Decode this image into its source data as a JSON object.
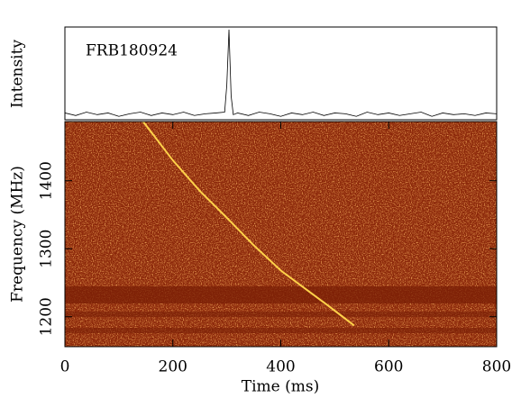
{
  "chart_data": [
    {
      "type": "line",
      "annotation": "FRB180924",
      "ylabel": "Intensity",
      "color": "#000000",
      "x": [
        0,
        20,
        40,
        60,
        80,
        100,
        120,
        140,
        160,
        180,
        200,
        220,
        240,
        260,
        280,
        296,
        300,
        304,
        308,
        312,
        320,
        340,
        360,
        380,
        400,
        420,
        440,
        460,
        480,
        500,
        520,
        540,
        560,
        580,
        600,
        620,
        640,
        660,
        680,
        700,
        720,
        740,
        760,
        780,
        800
      ],
      "values": [
        0.02,
        -0.01,
        0.03,
        0.0,
        0.02,
        -0.02,
        0.01,
        0.03,
        -0.01,
        0.02,
        0.0,
        0.03,
        -0.01,
        0.01,
        0.02,
        0.03,
        0.35,
        1.0,
        0.22,
        0.0,
        0.02,
        -0.01,
        0.03,
        0.01,
        -0.02,
        0.02,
        0.0,
        0.03,
        -0.01,
        0.02,
        0.01,
        -0.02,
        0.03,
        0.0,
        0.02,
        -0.01,
        0.01,
        0.03,
        -0.02,
        0.02,
        0.0,
        0.01,
        -0.01,
        0.02,
        0.01
      ],
      "xlim": [
        0,
        800
      ],
      "ylim": [
        -0.06,
        1.03
      ]
    },
    {
      "type": "spectrogram",
      "xlabel": "Time (ms)",
      "ylabel": "Frequency (MHz)",
      "color": "#ffd24a",
      "x": [
        145,
        200,
        250,
        297,
        350,
        400,
        439,
        490,
        536
      ],
      "values": [
        1487,
        1430,
        1385,
        1348,
        1305,
        1268,
        1245,
        1215,
        1187
      ],
      "xlim": [
        0,
        800
      ],
      "xticks": [
        0,
        200,
        400,
        600,
        800
      ],
      "ylim": [
        1156,
        1487
      ],
      "yticks": [
        1200,
        1300,
        1400
      ]
    }
  ]
}
